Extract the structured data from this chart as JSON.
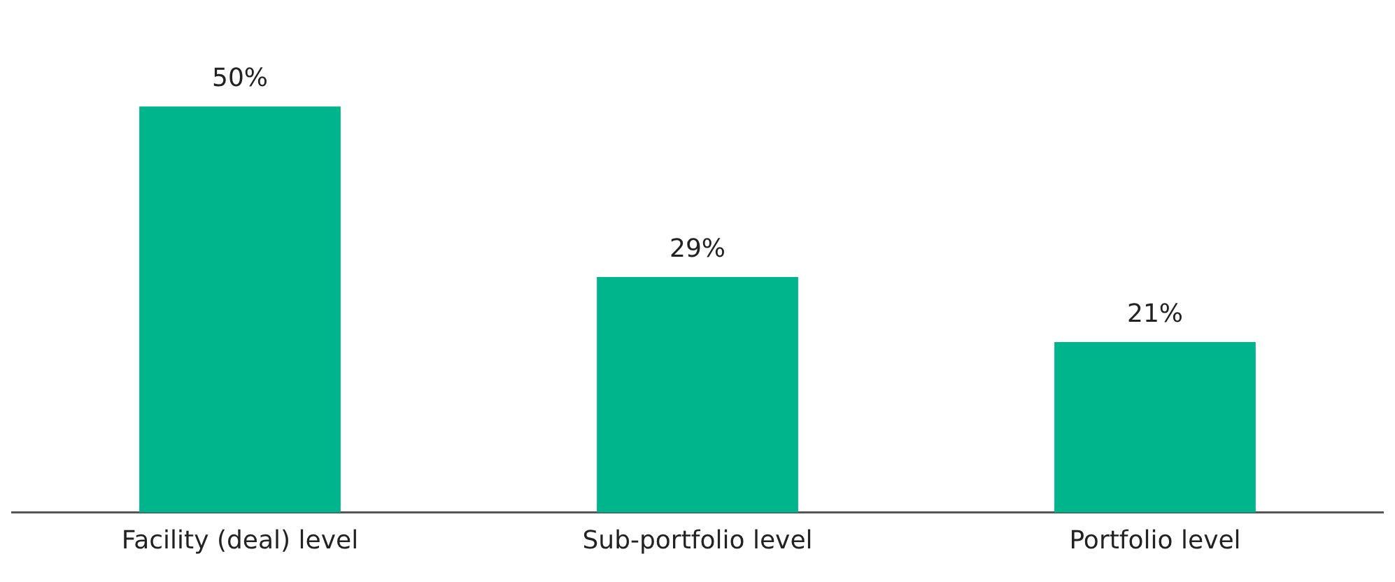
{
  "chart_data": {
    "type": "bar",
    "categories": [
      "Facility (deal) level",
      "Sub-portfolio level",
      "Portfolio level"
    ],
    "values": [
      50,
      29,
      21
    ],
    "color": "#00b48c",
    "value_labels": [
      "50%",
      "29%",
      "21%"
    ],
    "tick_labels": "x",
    "grid": false,
    "legend": false
  }
}
